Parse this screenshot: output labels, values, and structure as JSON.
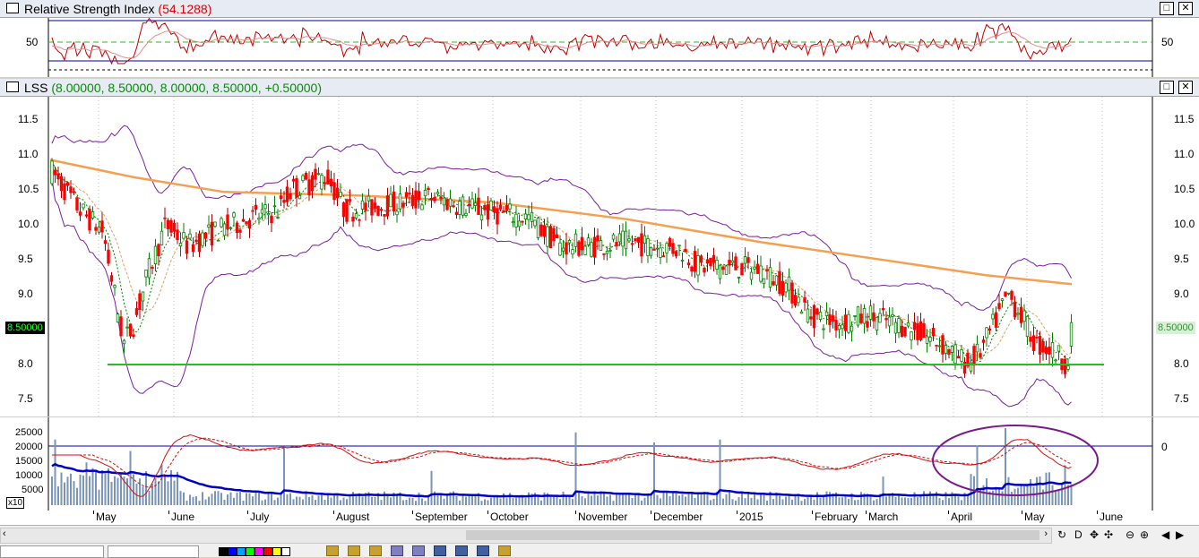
{
  "rsi_panel": {
    "title": "Relative Strength Index",
    "value": "(54.1288)",
    "y_tick": "50"
  },
  "price_panel": {
    "title": "LSS",
    "values": "(8.00000, 8.50000, 8.00000, 8.50000, +0.50000)",
    "y_ticks": [
      "11.5",
      "11.0",
      "10.5",
      "10.0",
      "9.5",
      "9.0",
      "8.5",
      "8.0",
      "7.5"
    ],
    "last_price_left": "8.50000",
    "last_price_right": "8.50000"
  },
  "volume_panel": {
    "y_ticks": [
      "25000",
      "20000",
      "15000",
      "10000",
      "5000"
    ],
    "multiplier": "x10",
    "right_tick": "0"
  },
  "time_axis": {
    "labels": [
      "May",
      "June",
      "July",
      "August",
      "September",
      "October",
      "November",
      "December",
      "2015",
      "February",
      "March",
      "April",
      "May",
      "June"
    ]
  },
  "buttons": {
    "maximize": "□",
    "close": "✕"
  },
  "colors": {
    "up_candle": "#008000",
    "down_candle": "#ff0000",
    "ma_long": "#f5a050",
    "bollinger": "#7a1fa0",
    "support_line": "#22c022",
    "rsi_line": "#c00000",
    "volume_bar": "#7a95b5",
    "volume_ma": "#0000c0",
    "annotation_ellipse": "#7a1a8a"
  },
  "chart_data": {
    "type": "candlestick",
    "support_level": 8.0,
    "ylim": [
      7.3,
      11.8
    ],
    "rsi_level": 50,
    "rsi_last": 54.1288,
    "last": {
      "open": 8.0,
      "high": 8.5,
      "low": 8.0,
      "close": 8.5,
      "change": 0.5
    },
    "volume_ylim": [
      0,
      27000
    ]
  }
}
